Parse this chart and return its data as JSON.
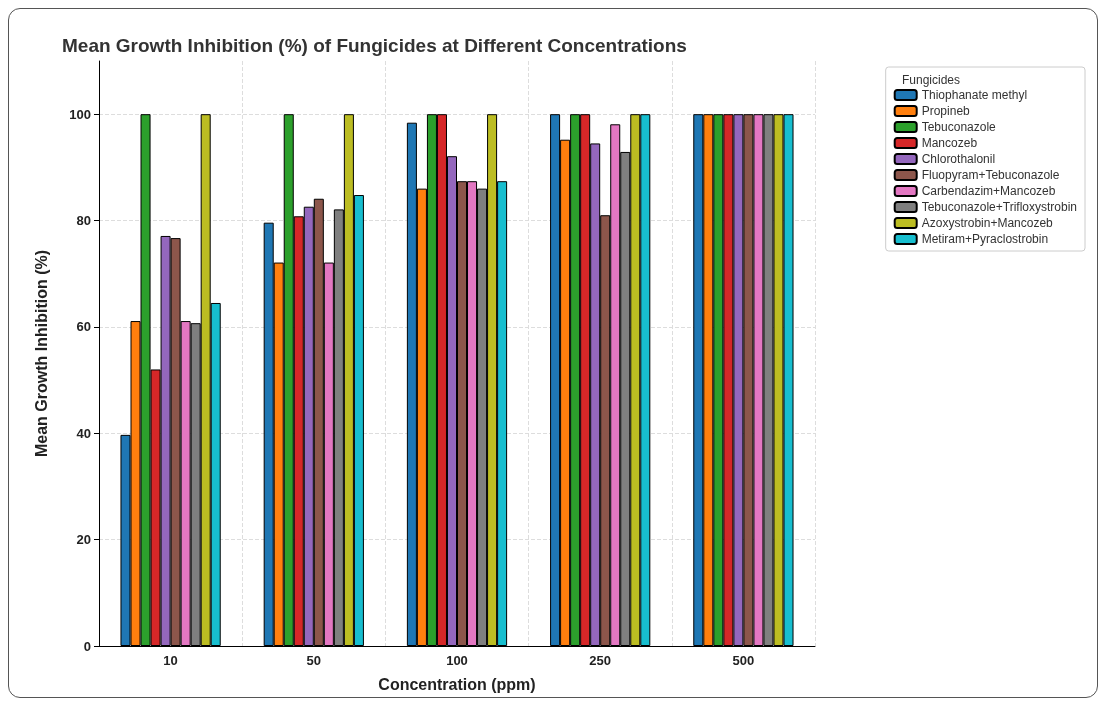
{
  "chart_data": {
    "type": "bar",
    "title": "Mean Growth Inhibition (%) of Fungicides at Different Concentrations",
    "xlabel": "Concentration (ppm)",
    "ylabel": "Mean Growth Inhibition (%)",
    "legend_title": "Fungicides",
    "categories": [
      "10",
      "50",
      "100",
      "250",
      "500"
    ],
    "series": [
      {
        "name": "Thiophanate methyl",
        "color": "#1f77b4",
        "values": [
          39.7,
          79.6,
          98.4,
          100,
          100
        ]
      },
      {
        "name": "Propineb",
        "color": "#ff7f0e",
        "values": [
          61.1,
          72.1,
          86,
          95.2,
          100
        ]
      },
      {
        "name": "Tebuconazole",
        "color": "#2ca02c",
        "values": [
          100,
          100,
          100,
          100,
          100
        ]
      },
      {
        "name": "Mancozeb",
        "color": "#d62728",
        "values": [
          52,
          80.8,
          100,
          100,
          100
        ]
      },
      {
        "name": "Chlorothalonil",
        "color": "#9467bd",
        "values": [
          77.1,
          82.6,
          92.1,
          94.5,
          100
        ]
      },
      {
        "name": "Fluopyram+Tebuconazole",
        "color": "#8c564b",
        "values": [
          76.7,
          84.1,
          87.4,
          81,
          100
        ]
      },
      {
        "name": "Carbendazim+Mancozeb",
        "color": "#e377c2",
        "values": [
          61.1,
          72.1,
          87.4,
          98.1,
          100
        ]
      },
      {
        "name": "Tebuconazole+Trifloxystrobin",
        "color": "#7f7f7f",
        "values": [
          60.7,
          82.1,
          86,
          92.9,
          100
        ]
      },
      {
        "name": "Azoxystrobin+Mancozeb",
        "color": "#bcbd22",
        "values": [
          100,
          100,
          100,
          100,
          100
        ]
      },
      {
        "name": "Metiram+Pyraclostrobin",
        "color": "#17becf",
        "values": [
          64.5,
          84.8,
          87.4,
          100,
          100
        ]
      }
    ],
    "ylim": [
      0,
      110
    ],
    "yticks": [
      0,
      20,
      40,
      60,
      80,
      100
    ],
    "grid": true,
    "legend": "top right"
  }
}
